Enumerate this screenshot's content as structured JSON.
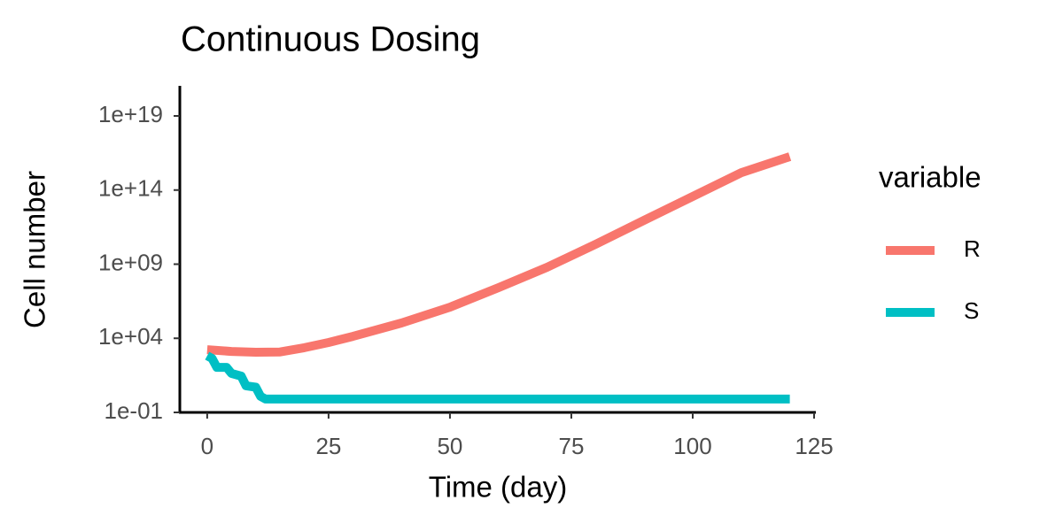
{
  "chart_data": {
    "type": "line",
    "title": "Continuous Dosing",
    "x_label": "Time (day)",
    "y_label": "Cell number",
    "legend_title": "variable",
    "legend_position": "right",
    "log_y": true,
    "xlim": [
      -6,
      126
    ],
    "xticks": [
      0,
      25,
      50,
      75,
      100,
      125
    ],
    "ylim": [
      0.1,
      1e+21
    ],
    "yticks": [
      {
        "value": 0.1,
        "label": "1e-01"
      },
      {
        "value": 10000,
        "label": "1e+04"
      },
      {
        "value": 1000000000,
        "label": "1e+09"
      },
      {
        "value": 100000000000000,
        "label": "1e+14"
      },
      {
        "value": 10000000000000000000,
        "label": "1e+19"
      }
    ],
    "series": [
      {
        "name": "R",
        "color": "#F8766D",
        "x": [
          0,
          5,
          10,
          15,
          20,
          25,
          30,
          40,
          50,
          60,
          70,
          80,
          90,
          100,
          110,
          120
        ],
        "values": [
          1700,
          1300,
          1150,
          1200,
          2300,
          5200,
          13500,
          107000,
          1260000,
          26000000,
          620000000,
          22000000000,
          910000000000,
          37000000000000,
          1500000000000000,
          18000000000000000
        ]
      },
      {
        "name": "S",
        "color": "#00BFC4",
        "x": [
          0,
          1,
          2,
          4,
          5,
          7,
          8,
          10,
          11,
          12,
          120
        ],
        "values": [
          660,
          440,
          110,
          110,
          43,
          28,
          6.3,
          5,
          1.2,
          0.8,
          0.8
        ]
      }
    ]
  }
}
